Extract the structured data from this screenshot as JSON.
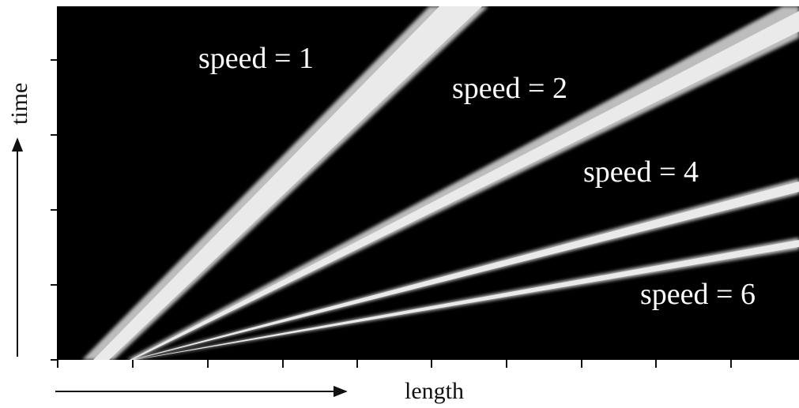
{
  "diagram": {
    "x_axis_label": "length",
    "y_axis_label": "time",
    "x_tick_count": 10,
    "y_tick_count": 5,
    "colors": {
      "background": "#000000",
      "band": "#eaeaea",
      "band_glow": "#bdbdbd",
      "axis": "#111111"
    },
    "bands": [
      {
        "label": "speed = 1",
        "speed": 1
      },
      {
        "label": "speed = 2",
        "speed": 2
      },
      {
        "label": "speed = 4",
        "speed": 4
      },
      {
        "label": "speed = 6",
        "speed": 6
      }
    ]
  }
}
